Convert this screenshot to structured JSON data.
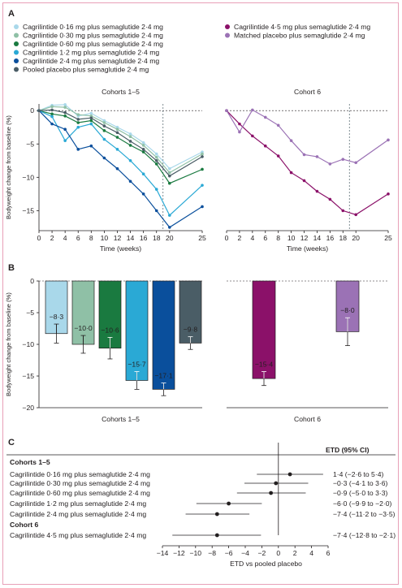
{
  "panels": {
    "a": "A",
    "b": "B",
    "c": "C"
  },
  "colors": {
    "cag016": "#a9d8ea",
    "cag030": "#8fc0a6",
    "cag060": "#1a7a40",
    "cag12": "#2aa9d5",
    "cag24": "#0a4f9c",
    "pooled": "#4a5d66",
    "cag45": "#8b1169",
    "matched": "#9b72b5"
  },
  "legend": [
    {
      "key": "cag016",
      "label": "Cagrilintide 0·16 mg plus semaglutide 2·4 mg"
    },
    {
      "key": "cag030",
      "label": "Cagrilintide 0·30 mg plus semaglutide 2·4 mg"
    },
    {
      "key": "cag060",
      "label": "Cagrilintide 0·60 mg plus semaglutide 2·4 mg"
    },
    {
      "key": "cag12",
      "label": "Cagrilintide 1·2 mg plus semaglutide 2·4 mg"
    },
    {
      "key": "cag24",
      "label": "Cagrilintide 2·4 mg plus semaglutide 2·4 mg"
    },
    {
      "key": "pooled",
      "label": "Pooled placebo plus semaglutide 2·4 mg"
    },
    {
      "key": "cag45",
      "label": "Cagrilintide 4·5 mg plus semaglutide 2·4 mg"
    },
    {
      "key": "matched",
      "label": "Matched placebo plus semaglutide 2·4 mg"
    }
  ],
  "chart_data": [
    {
      "type": "line",
      "panel": "A",
      "title": "Cohorts 1–5",
      "xlabel": "Time (weeks)",
      "ylabel": "Bodyweight change from baseline (%)",
      "x": [
        0,
        2,
        4,
        6,
        8,
        10,
        12,
        14,
        16,
        18,
        20,
        25
      ],
      "xticks": [
        0,
        2,
        4,
        6,
        8,
        10,
        12,
        14,
        16,
        18,
        20,
        25
      ],
      "ylim": [
        -18,
        1
      ],
      "yticks": [
        0,
        -5,
        -10,
        -15
      ],
      "reference_line_x": 19,
      "series": [
        {
          "key": "cag016",
          "name": "Cagrilintide 0·16 mg plus semaglutide 2·4 mg",
          "values": [
            0,
            0.8,
            0.9,
            -0.8,
            -0.4,
            -1.5,
            -2.5,
            -3.5,
            -4.8,
            -6.5,
            -8.7,
            -6.2
          ]
        },
        {
          "key": "cag030",
          "name": "Cagrilintide 0·30 mg plus semaglutide 2·4 mg",
          "values": [
            0,
            0.6,
            0.5,
            -0.6,
            -0.8,
            -1.8,
            -2.8,
            -3.9,
            -5.2,
            -7.0,
            -9.3,
            -6.5
          ]
        },
        {
          "key": "cag060",
          "name": "Cagrilintide 0·60 mg plus semaglutide 2·4 mg",
          "values": [
            0,
            -0.5,
            -0.8,
            -1.8,
            -1.5,
            -3.0,
            -4.0,
            -5.2,
            -6.2,
            -8.0,
            -10.9,
            -8.8
          ]
        },
        {
          "key": "cag12",
          "name": "Cagrilintide 1·2 mg plus semaglutide 2·4 mg",
          "values": [
            0,
            -0.9,
            -4.5,
            -2.5,
            -2.0,
            -4.3,
            -5.8,
            -7.5,
            -9.5,
            -11.8,
            -15.7,
            -11.2
          ]
        },
        {
          "key": "cag24",
          "name": "Cagrilintide 2·4 mg plus semaglutide 2·4 mg",
          "values": [
            0,
            -2.0,
            -2.8,
            -5.8,
            -5.3,
            -7.1,
            -8.7,
            -10.6,
            -12.5,
            -15.0,
            -17.5,
            -14.4
          ]
        },
        {
          "key": "pooled",
          "name": "Pooled placebo plus semaglutide 2·4 mg",
          "values": [
            0,
            0.1,
            -0.3,
            -1.3,
            -1.1,
            -2.3,
            -3.3,
            -4.6,
            -5.8,
            -7.5,
            -9.8,
            -6.9
          ]
        }
      ]
    },
    {
      "type": "line",
      "panel": "A",
      "title": "Cohort 6",
      "xlabel": "Time (weeks)",
      "x": [
        0,
        2,
        4,
        6,
        8,
        10,
        12,
        14,
        16,
        18,
        20,
        25
      ],
      "xticks": [
        0,
        2,
        4,
        6,
        8,
        10,
        12,
        14,
        16,
        18,
        20,
        25
      ],
      "ylim": [
        -18,
        1
      ],
      "reference_line_x": 19,
      "series": [
        {
          "key": "cag45",
          "name": "Cagrilintide 4·5 mg plus semaglutide 2·4 mg",
          "values": [
            0,
            -2.0,
            -3.8,
            -5.3,
            -6.8,
            -9.3,
            -10.5,
            -12.1,
            -13.3,
            -15.0,
            -15.6,
            -12.5
          ]
        },
        {
          "key": "matched",
          "name": "Matched placebo plus semaglutide 2·4 mg",
          "values": [
            0,
            -3.2,
            0.1,
            -1.0,
            -2.2,
            -4.5,
            -6.6,
            -6.9,
            -8.0,
            -7.3,
            -7.8,
            -4.4
          ]
        }
      ]
    },
    {
      "type": "bar",
      "panel": "B",
      "ylabel": "Bodyweight change from baseline (%)",
      "ylim": [
        -20,
        0
      ],
      "yticks": [
        0,
        -5,
        -10,
        -15,
        -20
      ],
      "groups": [
        {
          "label": "Cohorts 1–5",
          "bars": [
            {
              "key": "cag016",
              "value": -8.3,
              "label": "−8·3",
              "err_low": -9.8,
              "err_high": -6.8
            },
            {
              "key": "cag030",
              "value": -10.0,
              "label": "−10·0",
              "err_low": -11.4,
              "err_high": -8.6
            },
            {
              "key": "cag060",
              "value": -10.6,
              "label": "−10·6",
              "err_low": -12.3,
              "err_high": -8.9
            },
            {
              "key": "cag12",
              "value": -15.7,
              "label": "−15·7",
              "err_low": -17.1,
              "err_high": -14.3
            },
            {
              "key": "cag24",
              "value": -17.1,
              "label": "−17·1",
              "err_low": -18.1,
              "err_high": -16.1
            },
            {
              "key": "pooled",
              "value": -9.8,
              "label": "−9·8",
              "err_low": -10.8,
              "err_high": -8.8
            }
          ]
        },
        {
          "label": "Cohort 6",
          "bars": [
            {
              "key": "cag45",
              "value": -15.4,
              "label": "−15·4",
              "err_low": -16.5,
              "err_high": -14.3
            },
            {
              "key": "matched",
              "value": -8.0,
              "label": "−8·0",
              "err_low": -10.2,
              "err_high": -5.8
            }
          ]
        }
      ]
    },
    {
      "type": "scatter",
      "panel": "C",
      "xlabel": "ETD vs pooled placebo",
      "xlim": [
        -14,
        6
      ],
      "xticks": [
        -14,
        -12,
        -10,
        -8,
        -6,
        -4,
        -2,
        0,
        2,
        4,
        6
      ],
      "column_header": "ETD (95% CI)",
      "sections": [
        {
          "title": "Cohorts 1–5",
          "rows": [
            {
              "label": "Cagrilintide 0·16 mg plus semaglutide 2·4 mg",
              "estimate": 1.4,
              "low": -2.6,
              "high": 5.4,
              "text": "1·4 (−2·6 to 5·4)"
            },
            {
              "label": "Cagrilintide 0·30 mg plus semaglutide 2·4 mg",
              "estimate": -0.3,
              "low": -4.1,
              "high": 3.6,
              "text": "−0·3 (−4·1 to 3·6)"
            },
            {
              "label": "Cagrilintide 0·60 mg plus semaglutide 2·4 mg",
              "estimate": -0.9,
              "low": -5.0,
              "high": 3.3,
              "text": "−0·9 (−5·0 to 3·3)"
            },
            {
              "label": "Cagrilintide 1·2 mg plus semaglutide 2·4 mg",
              "estimate": -6.0,
              "low": -9.9,
              "high": -2.0,
              "text": "−6·0 (−9·9 to −2·0)"
            },
            {
              "label": "Cagrilintide 2·4 mg plus semaglutide 2·4 mg",
              "estimate": -7.4,
              "low": -11.2,
              "high": -3.5,
              "text": "−7·4 (−11·2 to −3·5)"
            }
          ]
        },
        {
          "title": "Cohort 6",
          "rows": [
            {
              "label": "Cagrilintide 4·5 mg plus semaglutide 2·4 mg",
              "estimate": -7.4,
              "low": -12.8,
              "high": -2.1,
              "text": "−7·4 (−12·8 to −2·1)"
            }
          ]
        }
      ]
    }
  ]
}
